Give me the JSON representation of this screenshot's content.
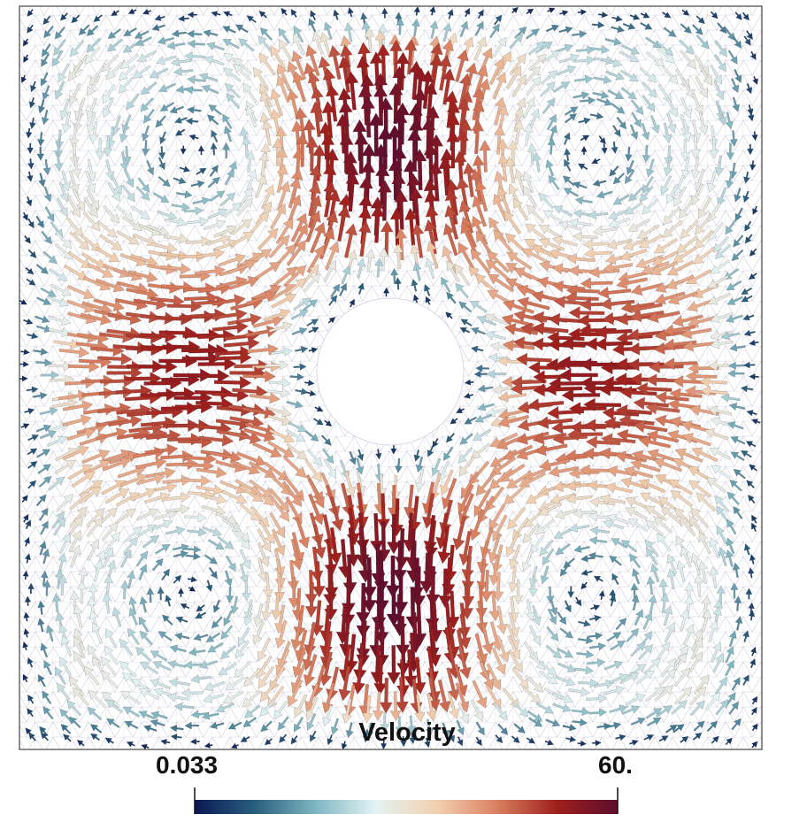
{
  "legend": {
    "title": "Velocity",
    "min_label": "0.033",
    "max_label": "60.",
    "range": [
      0.033,
      60
    ],
    "colormap": [
      "#0a1853",
      "#2a5f7e",
      "#7fb6c2",
      "#e4f3f3",
      "#f2d1b1",
      "#d98060",
      "#9e1f1c",
      "#5e0e2f"
    ]
  },
  "field": {
    "cylinder": "center",
    "mesh_color": "#c8c8dc",
    "background": "#ffffff",
    "frame_color": "#444444"
  }
}
